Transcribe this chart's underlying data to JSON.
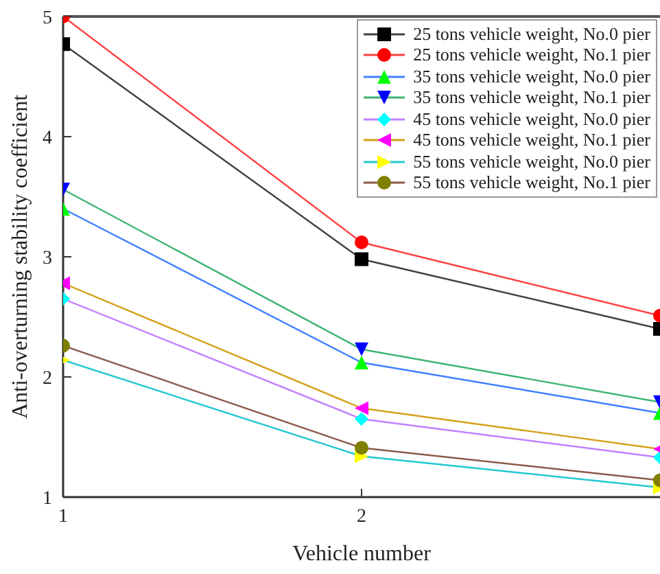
{
  "chart_data": {
    "type": "line",
    "xlabel": "Vehicle number",
    "ylabel": "Anti-overturning stability coefficient",
    "x": [
      1,
      2,
      3
    ],
    "xlim": [
      1,
      3
    ],
    "xticks": [
      1,
      2
    ],
    "ylim": [
      1,
      5
    ],
    "yticks": [
      1,
      2,
      3,
      4,
      5
    ],
    "grid": false,
    "legend": "top right",
    "line_style": "solid",
    "series": [
      {
        "name": "25 tons vehicle weight, No.0 pier",
        "color": "#404040",
        "colors": [
          "#000000",
          "#000000",
          "#000000"
        ],
        "marker": "square",
        "values": [
          4.77,
          2.98,
          2.4
        ]
      },
      {
        "name": "25 tons vehicle weight, No.1 pier",
        "color": "#ff4040",
        "colors": [
          "#ff0000",
          "#ff0000",
          "#ff0000"
        ],
        "marker": "circle",
        "values": [
          5.0,
          3.12,
          2.51
        ]
      },
      {
        "name": "35 tons vehicle weight, No.0 pier",
        "color": "#4080ff",
        "colors": [
          "#00ff00",
          "#00ff00",
          "#00ff00"
        ],
        "marker": "triangle",
        "values": [
          3.4,
          2.12,
          1.7
        ]
      },
      {
        "name": "35 tons vehicle weight, No.1 pier",
        "color": "#3cb371",
        "colors": [
          "#0000ff",
          "#0000ff",
          "#0000ff"
        ],
        "marker": "triangle-down",
        "values": [
          3.56,
          2.23,
          1.79
        ]
      },
      {
        "name": "45 tons vehicle weight, No.0 pier",
        "color": "#c080ff",
        "colors": [
          "#00ffff",
          "#00ffff",
          "#00ffff"
        ],
        "marker": "diamond",
        "values": [
          2.65,
          1.65,
          1.33
        ]
      },
      {
        "name": "45 tons vehicle weight, No.1 pier",
        "color": "#d4a017",
        "colors": [
          "#ff00ff",
          "#ff00ff",
          "#ff00ff"
        ],
        "marker": "triangle-left",
        "values": [
          2.78,
          1.74,
          1.4
        ]
      },
      {
        "name": "55 tons vehicle weight, No.0 pier",
        "color": "#20c8d0",
        "colors": [
          "#ffff00",
          "#ffff00",
          "#ffff00"
        ],
        "marker": "triangle-right",
        "values": [
          2.14,
          1.34,
          1.08
        ]
      },
      {
        "name": "55 tons vehicle weight, No.1 pier",
        "color": "#8b5a4a",
        "colors": [
          "#808000",
          "#808000",
          "#808000"
        ],
        "marker": "circle",
        "values": [
          2.26,
          1.41,
          1.14
        ]
      }
    ]
  }
}
